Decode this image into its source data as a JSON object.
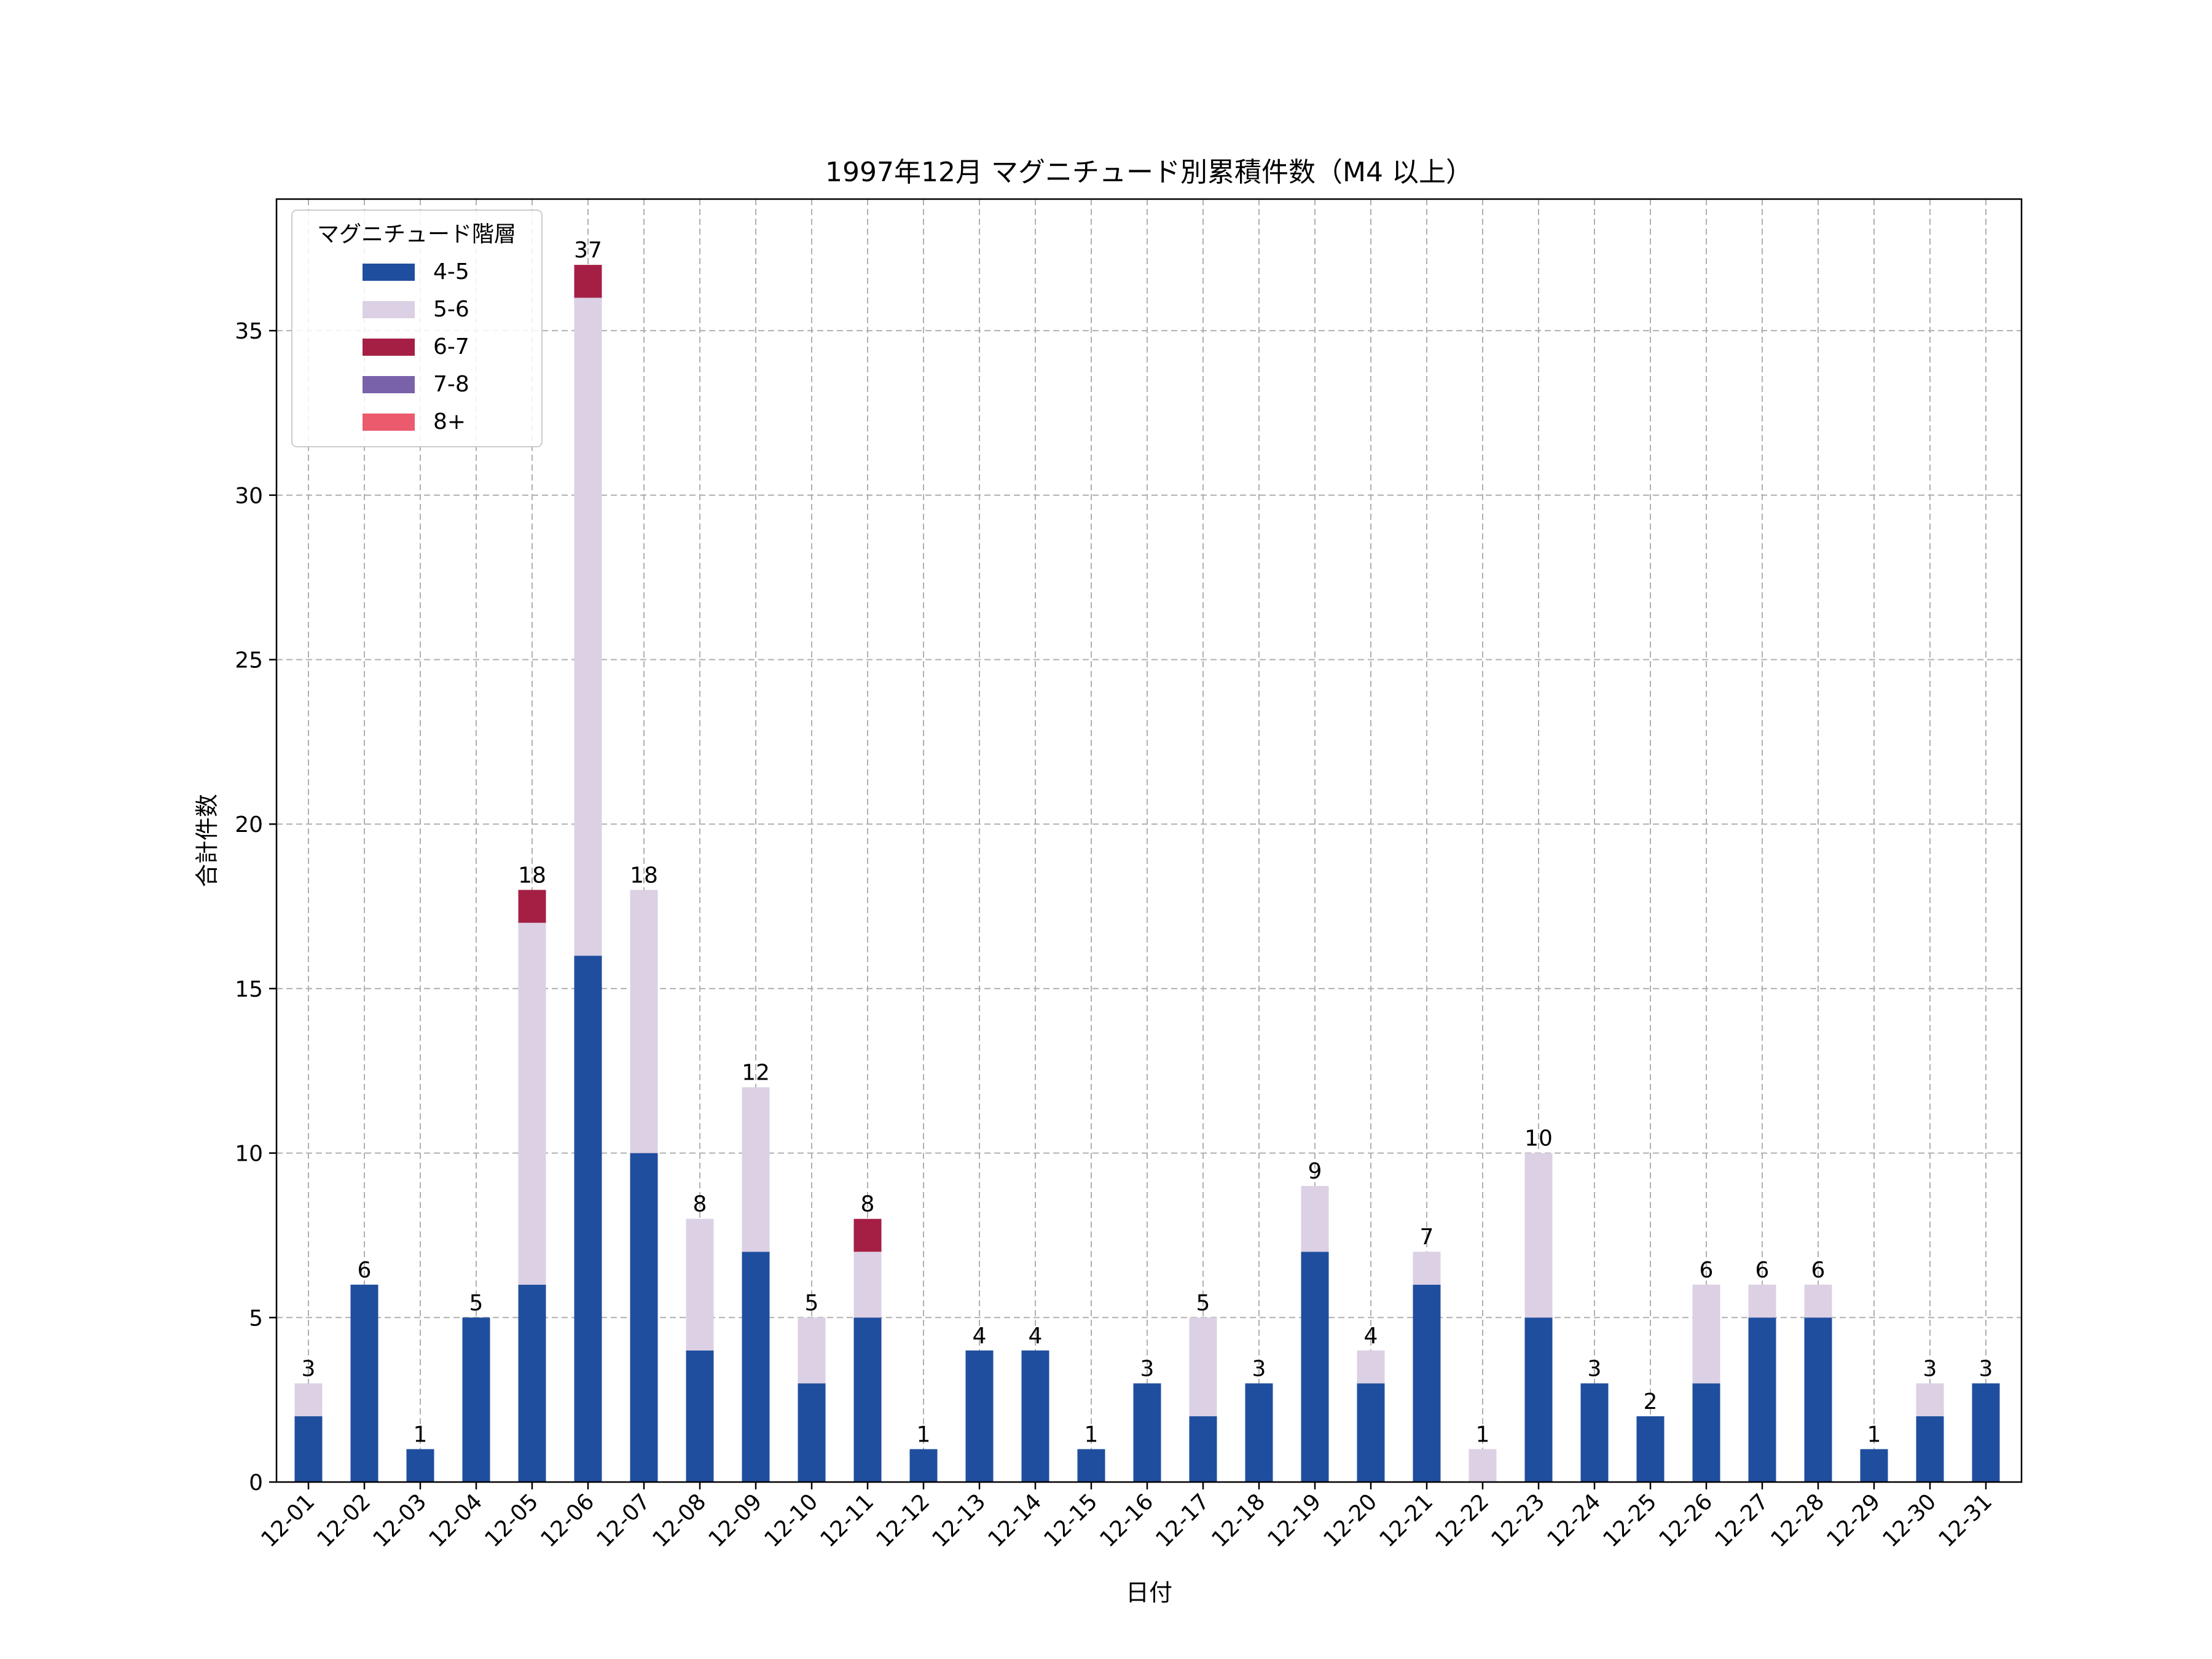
{
  "chart_data": {
    "type": "bar",
    "stacked": true,
    "title": "1997年12月 マグニチュード別累積件数（M4 以上）",
    "xlabel": "日付",
    "ylabel": "合計件数",
    "ylim": [
      0,
      39
    ],
    "yticks": [
      0,
      5,
      10,
      15,
      20,
      25,
      30,
      35
    ],
    "grid": true,
    "legend": {
      "title": "マグニチュード階層",
      "position": "top-left"
    },
    "categories": [
      "12-01",
      "12-02",
      "12-03",
      "12-04",
      "12-05",
      "12-06",
      "12-07",
      "12-08",
      "12-09",
      "12-10",
      "12-11",
      "12-12",
      "12-13",
      "12-14",
      "12-15",
      "12-16",
      "12-17",
      "12-18",
      "12-19",
      "12-20",
      "12-21",
      "12-22",
      "12-23",
      "12-24",
      "12-25",
      "12-26",
      "12-27",
      "12-28",
      "12-29",
      "12-30",
      "12-31"
    ],
    "series": [
      {
        "name": "4-5",
        "color": "#1f4e9e",
        "values": [
          2,
          6,
          1,
          5,
          6,
          16,
          10,
          4,
          7,
          3,
          5,
          1,
          4,
          4,
          1,
          3,
          2,
          3,
          7,
          3,
          6,
          0,
          5,
          3,
          2,
          3,
          5,
          5,
          1,
          2,
          3
        ]
      },
      {
        "name": "5-6",
        "color": "#dcd0e4",
        "values": [
          1,
          0,
          0,
          0,
          11,
          20,
          8,
          4,
          5,
          2,
          2,
          0,
          0,
          0,
          0,
          0,
          3,
          0,
          2,
          1,
          1,
          1,
          5,
          0,
          0,
          3,
          1,
          1,
          0,
          1,
          0
        ]
      },
      {
        "name": "6-7",
        "color": "#a51f45",
        "values": [
          0,
          0,
          0,
          0,
          1,
          1,
          0,
          0,
          0,
          0,
          1,
          0,
          0,
          0,
          0,
          0,
          0,
          0,
          0,
          0,
          0,
          0,
          0,
          0,
          0,
          0,
          0,
          0,
          0,
          0,
          0
        ]
      },
      {
        "name": "7-8",
        "color": "#7a62ab",
        "values": [
          0,
          0,
          0,
          0,
          0,
          0,
          0,
          0,
          0,
          0,
          0,
          0,
          0,
          0,
          0,
          0,
          0,
          0,
          0,
          0,
          0,
          0,
          0,
          0,
          0,
          0,
          0,
          0,
          0,
          0,
          0
        ]
      },
      {
        "name": "8+",
        "color": "#ec5a6e",
        "values": [
          0,
          0,
          0,
          0,
          0,
          0,
          0,
          0,
          0,
          0,
          0,
          0,
          0,
          0,
          0,
          0,
          0,
          0,
          0,
          0,
          0,
          0,
          0,
          0,
          0,
          0,
          0,
          0,
          0,
          0,
          0
        ]
      }
    ],
    "totals": [
      3,
      6,
      1,
      5,
      18,
      37,
      18,
      8,
      12,
      5,
      8,
      1,
      4,
      4,
      1,
      3,
      5,
      3,
      9,
      4,
      7,
      1,
      10,
      3,
      2,
      6,
      6,
      6,
      1,
      3,
      3
    ]
  }
}
